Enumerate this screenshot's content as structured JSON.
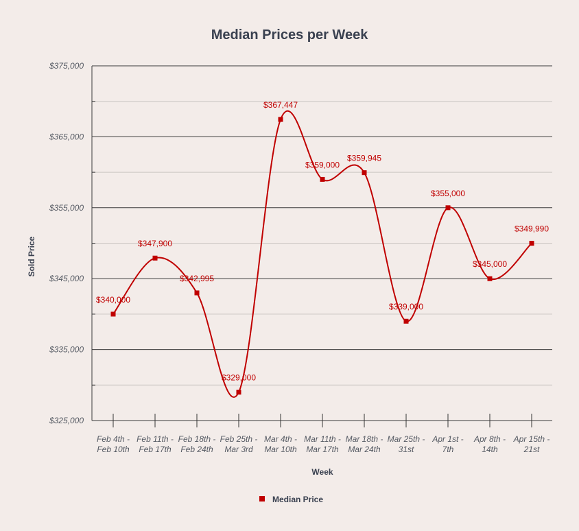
{
  "chart_data": {
    "type": "line",
    "title": "Median Prices per Week",
    "xlabel": "Week",
    "ylabel": "Sold Price",
    "categories": [
      [
        "Feb 4th -",
        "Feb 10th"
      ],
      [
        "Feb 11th -",
        "Feb 17th"
      ],
      [
        "Feb 18th -",
        "Feb 24th"
      ],
      [
        "Feb 25th -",
        "Mar 3rd"
      ],
      [
        "Mar 4th -",
        "Mar 10th"
      ],
      [
        "Mar 11th -",
        "Mar 17th"
      ],
      [
        "Mar 18th -",
        "Mar 24th"
      ],
      [
        "Mar 25th -",
        "31st"
      ],
      [
        "Apr 1st -",
        "7th"
      ],
      [
        "Apr 8th -",
        "14th"
      ],
      [
        "Apr 15th -",
        "21st"
      ]
    ],
    "series": [
      {
        "name": "Median Price",
        "color": "#c00000",
        "values": [
          340000,
          347900,
          342995,
          329000,
          367447,
          359000,
          359945,
          339000,
          355000,
          345000,
          349990
        ],
        "labels": [
          "$340,000",
          "$347,900",
          "$342,995",
          "$329,000",
          "$367,447",
          "$359,000",
          "$359,945",
          "$339,000",
          "$355,000",
          "$345,000",
          "$349,990"
        ]
      }
    ],
    "ylim": [
      325000,
      375000
    ],
    "yticks": [
      325000,
      335000,
      345000,
      355000,
      365000,
      375000
    ],
    "ytick_labels": [
      "$325,000",
      "$335,000",
      "$345,000",
      "$355,000",
      "$365,000",
      "$375,000"
    ],
    "minor_yticks": [
      330000,
      340000,
      350000,
      360000,
      370000
    ],
    "grid": true,
    "legend": "bottom-center"
  }
}
